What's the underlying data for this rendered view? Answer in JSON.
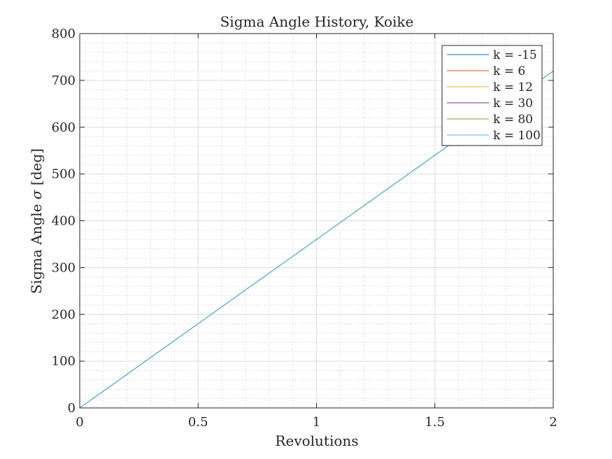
{
  "chart_data": {
    "type": "line",
    "title": "Sigma Angle History, Koike",
    "xlabel": "Revolutions",
    "ylabel_text": "Sigma Angle",
    "ylabel_symbol": "σ",
    "ylabel_unit": "[deg]",
    "xlim": [
      0,
      2
    ],
    "ylim": [
      0,
      800
    ],
    "xticks": [
      0,
      0.5,
      1,
      1.5,
      2
    ],
    "xtick_labels": [
      "0",
      "0.5",
      "1",
      "1.5",
      "2"
    ],
    "yticks": [
      0,
      100,
      200,
      300,
      400,
      500,
      600,
      700,
      800
    ],
    "ytick_labels": [
      "0",
      "100",
      "200",
      "300",
      "400",
      "500",
      "600",
      "700",
      "800"
    ],
    "grid": true,
    "minor_grid": true,
    "legend_position": "top-right",
    "series": [
      {
        "name": "k = -15",
        "color": "#0072BD",
        "x": [
          0,
          2
        ],
        "y": [
          0,
          720
        ]
      },
      {
        "name": "k = 6",
        "color": "#D95319",
        "x": [
          0,
          2
        ],
        "y": [
          0,
          720
        ]
      },
      {
        "name": "k = 12",
        "color": "#EDB120",
        "x": [
          0,
          2
        ],
        "y": [
          0,
          720
        ]
      },
      {
        "name": "k = 30",
        "color": "#7E2F8E",
        "x": [
          0,
          2
        ],
        "y": [
          0,
          720
        ]
      },
      {
        "name": "k = 80",
        "color": "#77AC30",
        "x": [
          0,
          2
        ],
        "y": [
          0,
          720
        ]
      },
      {
        "name": "k = 100",
        "color": "#4DBEEE",
        "x": [
          0,
          2
        ],
        "y": [
          0,
          720
        ]
      }
    ]
  }
}
